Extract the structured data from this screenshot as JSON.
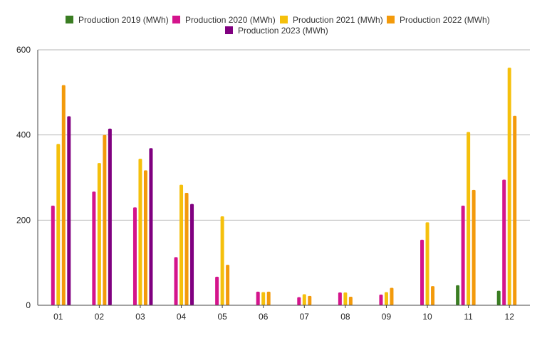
{
  "chart_data": {
    "type": "bar",
    "title": "",
    "xlabel": "",
    "ylabel": "",
    "ylim": [
      0,
      600
    ],
    "yticks": [
      0,
      200,
      400,
      600
    ],
    "grid": true,
    "legend_position": "top",
    "categories": [
      "01",
      "02",
      "03",
      "04",
      "05",
      "06",
      "07",
      "08",
      "09",
      "10",
      "11",
      "12"
    ],
    "series": [
      {
        "name": "Production 2019 (MWh)",
        "color": "#3a7d22",
        "values": [
          null,
          null,
          null,
          null,
          null,
          null,
          null,
          null,
          null,
          null,
          47,
          34
        ]
      },
      {
        "name": "Production 2020 (MWh)",
        "color": "#d4148c",
        "values": [
          234,
          267,
          230,
          113,
          67,
          32,
          19,
          30,
          25,
          154,
          234,
          295
        ]
      },
      {
        "name": "Production 2021 (MWh)",
        "color": "#f5c00c",
        "values": [
          379,
          334,
          344,
          283,
          209,
          31,
          26,
          30,
          31,
          195,
          407,
          558
        ]
      },
      {
        "name": "Production 2022 (MWh)",
        "color": "#f39a0b",
        "values": [
          517,
          400,
          317,
          264,
          95,
          32,
          22,
          20,
          41,
          45,
          271,
          445
        ]
      },
      {
        "name": "Production 2023 (MWh)",
        "color": "#800080",
        "values": [
          444,
          415,
          369,
          238,
          null,
          null,
          null,
          null,
          null,
          null,
          null,
          null
        ]
      }
    ]
  }
}
